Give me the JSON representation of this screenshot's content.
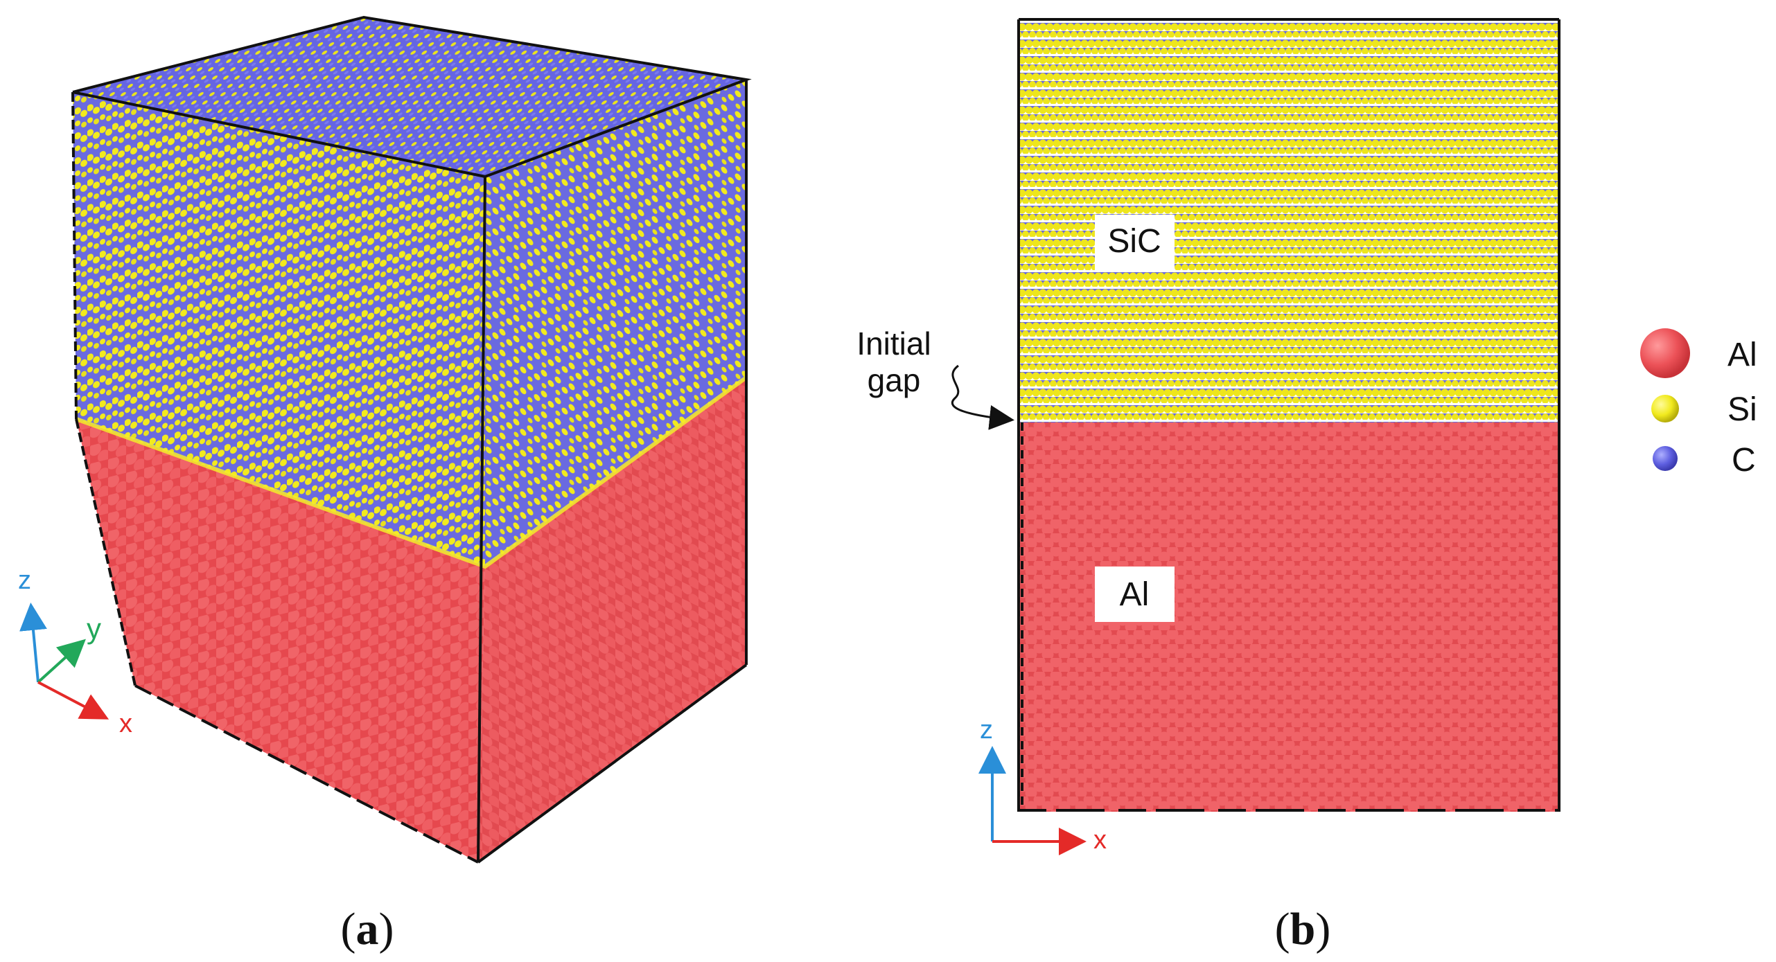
{
  "figure": {
    "panel_a": {
      "caption_letter": "a",
      "axes": {
        "z": "z",
        "y": "y",
        "x": "x"
      }
    },
    "panel_b": {
      "caption_letter": "b",
      "region_labels": {
        "top": "SiC",
        "bottom": "Al"
      },
      "annotation": {
        "line1": "Initial",
        "line2": "gap"
      },
      "axes": {
        "z": "z",
        "x": "x"
      }
    },
    "legend": [
      {
        "label": "Al",
        "color": "#e8555a"
      },
      {
        "label": "Si",
        "color": "#f1ea1e"
      },
      {
        "label": "C",
        "color": "#5e5fe0"
      }
    ]
  },
  "colors": {
    "al": "#ee5a5f",
    "si": "#eae61a",
    "c": "#6464e2",
    "axis_x": "#e42a28",
    "axis_y": "#22a85a",
    "axis_z": "#2a8fd8",
    "edge": "#111111"
  }
}
